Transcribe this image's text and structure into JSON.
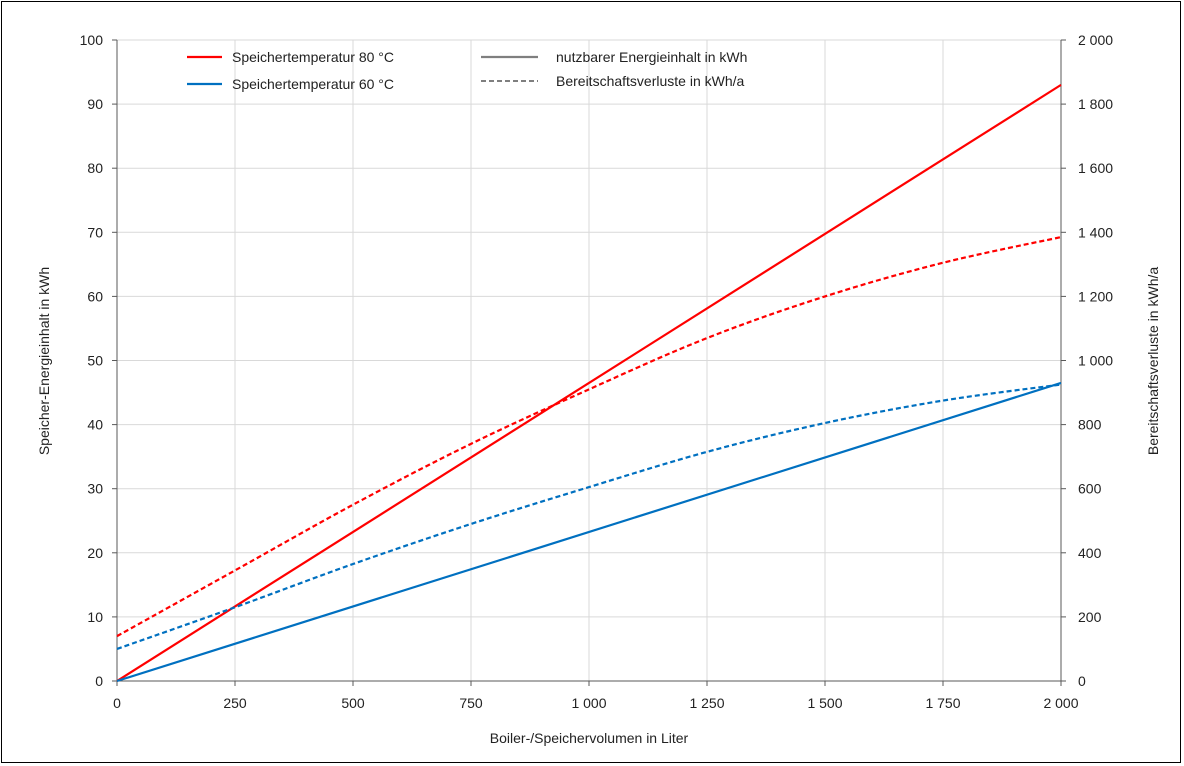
{
  "chart_data": {
    "type": "line",
    "xlabel": "Boiler-/Speichervolumen in Liter",
    "ylabel": "Speicher-Energieinhalt in kWh",
    "y2label": "Bereitschaftsverluste in kWh/a",
    "xlim": [
      0,
      2000
    ],
    "ylim": [
      0,
      100
    ],
    "y2lim": [
      0,
      2000
    ],
    "grid": true,
    "x_ticks": [
      0,
      250,
      500,
      750,
      1000,
      1250,
      1500,
      1750,
      2000
    ],
    "x_tick_labels": [
      "0",
      "250",
      "500",
      "750",
      "1 000",
      "1 250",
      "1 500",
      "1 750",
      "2 000"
    ],
    "y_ticks": [
      0,
      10,
      20,
      30,
      40,
      50,
      60,
      70,
      80,
      90,
      100
    ],
    "y_tick_labels": [
      "0",
      "10",
      "20",
      "30",
      "40",
      "50",
      "60",
      "70",
      "80",
      "90",
      "100"
    ],
    "y2_ticks": [
      0,
      200,
      400,
      600,
      800,
      1000,
      1200,
      1400,
      1600,
      1800,
      2000
    ],
    "y2_tick_labels": [
      "0",
      "200",
      "400",
      "600",
      "800",
      "1 000",
      "1 200",
      "1 400",
      "1 600",
      "1 800",
      "2 000"
    ],
    "legend_placement": "top-left",
    "legend": {
      "colors": [
        {
          "label": "Speichertemperatur 80 °C",
          "color": "#ff0000"
        },
        {
          "label": "Speichertemperatur 60 °C",
          "color": "#0070c0"
        }
      ],
      "styles": [
        {
          "label": "nutzbarer Energieinhalt in kWh",
          "style": "solid"
        },
        {
          "label": "Bereitschaftsverluste in kWh/a",
          "style": "dashed"
        }
      ]
    },
    "series": [
      {
        "temperature": "80 °C",
        "quantity": "energy",
        "axis": "left",
        "color": "#ff0000",
        "style": "solid",
        "x": [
          0,
          2000
        ],
        "values": [
          0,
          93
        ]
      },
      {
        "temperature": "60 °C",
        "quantity": "energy",
        "axis": "left",
        "color": "#0070c0",
        "style": "solid",
        "x": [
          0,
          2000
        ],
        "values": [
          0,
          46.5
        ]
      },
      {
        "temperature": "80 °C",
        "quantity": "losses",
        "axis": "right",
        "color": "#ff0000",
        "style": "dashed",
        "x": [
          0,
          250,
          500,
          750,
          1000,
          1250,
          1500,
          1750,
          2000
        ],
        "values": [
          140,
          345,
          550,
          740,
          910,
          1070,
          1200,
          1305,
          1385
        ]
      },
      {
        "temperature": "60 °C",
        "quantity": "losses",
        "axis": "right",
        "color": "#0070c0",
        "style": "dashed",
        "x": [
          0,
          250,
          500,
          750,
          1000,
          1250,
          1500,
          1750,
          2000
        ],
        "values": [
          100,
          230,
          365,
          490,
          605,
          715,
          805,
          875,
          925
        ]
      }
    ]
  }
}
